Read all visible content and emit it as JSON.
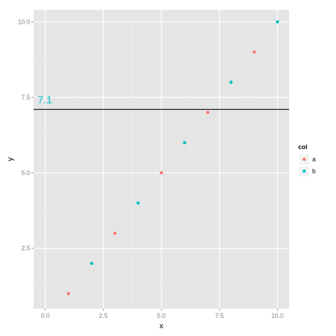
{
  "chart_data": {
    "type": "scatter",
    "xlabel": "x",
    "ylabel": "y",
    "xlim": [
      -0.5,
      10.5
    ],
    "ylim": [
      0.5,
      10.4
    ],
    "x_ticks": [
      "0.0",
      "2.5",
      "5.0",
      "7.5",
      "10.0"
    ],
    "x_tick_values": [
      0,
      2.5,
      5,
      7.5,
      10
    ],
    "y_ticks": [
      "2.5",
      "5.0",
      "7.5",
      "10.0"
    ],
    "y_tick_values": [
      2.5,
      5,
      7.5,
      10
    ],
    "grid": true,
    "legend": {
      "title": "col",
      "placement": "right",
      "entries": [
        {
          "label": "a",
          "color": "#F8766D"
        },
        {
          "label": "b",
          "color": "#00BFC4"
        }
      ]
    },
    "series": [
      {
        "name": "a",
        "color": "#F8766D",
        "x": [
          1,
          3,
          5,
          7,
          9
        ],
        "y": [
          1,
          3,
          5,
          7,
          9
        ]
      },
      {
        "name": "b",
        "color": "#00BFC4",
        "x": [
          2,
          4,
          6,
          8,
          10
        ],
        "y": [
          2,
          4,
          6,
          8,
          10
        ]
      }
    ],
    "hline": {
      "y": 7.1,
      "color": "#000000"
    },
    "annotation": {
      "text": "7.1",
      "x": 0,
      "y": 7.1,
      "color": "#00BFC4"
    }
  },
  "colors": {
    "panel_background": "#E5E5E5",
    "grid_major": "#FFFFFF",
    "grid_minor": "#F2F2F2"
  }
}
